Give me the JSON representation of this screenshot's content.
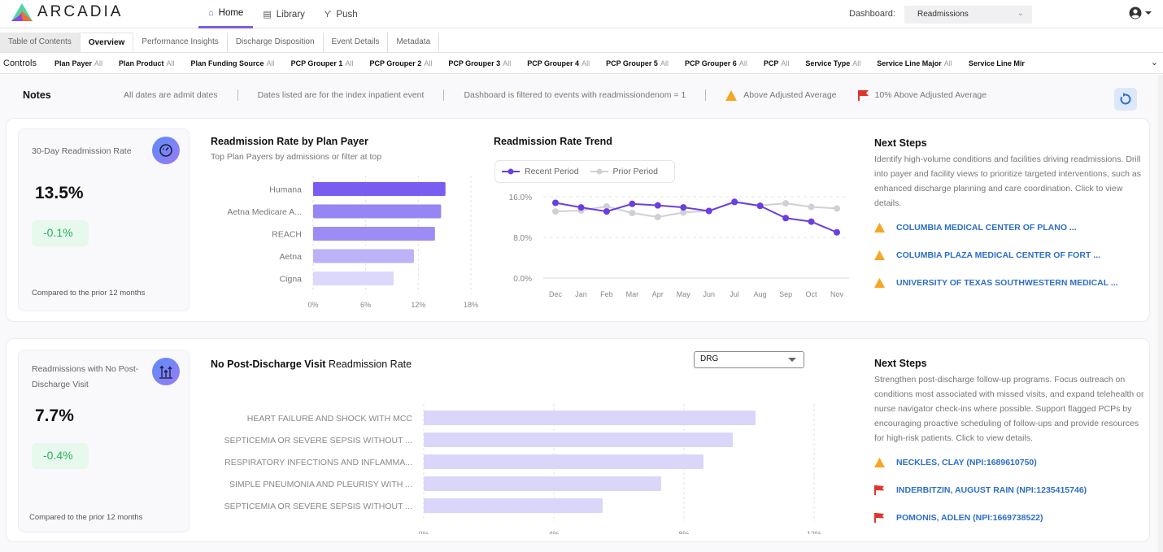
{
  "header": {
    "brand": "ARCADIA",
    "nav": [
      {
        "label": "Home",
        "icon": "home-icon",
        "active": true
      },
      {
        "label": "Library",
        "icon": "library-icon",
        "active": false
      },
      {
        "label": "Push",
        "icon": "push-icon",
        "active": false
      }
    ],
    "dashboard_label": "Dashboard:",
    "dashboard_value": "Readmissions"
  },
  "tabs": [
    {
      "label": "Table of Contents"
    },
    {
      "label": "Overview",
      "active": true
    },
    {
      "label": "Performance Insights"
    },
    {
      "label": "Discharge Disposition"
    },
    {
      "label": "Event Details"
    },
    {
      "label": "Metadata"
    }
  ],
  "controls": {
    "label": "Controls",
    "filters": [
      {
        "name": "Plan Payer",
        "value": "All"
      },
      {
        "name": "Plan Product",
        "value": "All"
      },
      {
        "name": "Plan Funding Source",
        "value": "All"
      },
      {
        "name": "PCP Grouper 1",
        "value": "All"
      },
      {
        "name": "PCP Grouper 2",
        "value": "All"
      },
      {
        "name": "PCP Grouper 3",
        "value": "All"
      },
      {
        "name": "PCP Grouper 4",
        "value": "All"
      },
      {
        "name": "PCP Grouper 5",
        "value": "All"
      },
      {
        "name": "PCP Grouper 6",
        "value": "All"
      },
      {
        "name": "PCP",
        "value": "All"
      },
      {
        "name": "Service Type",
        "value": "All"
      },
      {
        "name": "Service Line Major",
        "value": "All"
      },
      {
        "name": "Service Line Mir",
        "value": ""
      }
    ]
  },
  "notes": {
    "title": "Notes",
    "items": [
      "All dates are admit dates",
      "Dates listed are for the index inpatient event",
      "Dashboard is filtered to events with readmissiondenom = 1"
    ],
    "legend": [
      {
        "icon": "warning-triangle-icon",
        "label": "Above Adjusted Average",
        "color": "#f5a623"
      },
      {
        "icon": "red-flag-icon",
        "label": "10% Above Adjusted Average",
        "color": "#e0352b"
      }
    ]
  },
  "section1": {
    "kpi": {
      "title": "30-Day Readmission Rate",
      "value": "13.5%",
      "delta": "-0.1%",
      "footnote": "Compared to the prior 12 months"
    },
    "next_steps": {
      "title": "Next Steps",
      "description": "Identify high-volume conditions and facilities driving readmissions. Drill into payer and facility views to prioritize targeted interventions, such as enhanced discharge planning and care coordination. Click to view details.",
      "items": [
        {
          "label": "COLUMBIA MEDICAL CENTER OF PLANO ...",
          "flag": "triangle"
        },
        {
          "label": "COLUMBIA PLAZA MEDICAL CENTER OF FORT ...",
          "flag": "triangle"
        },
        {
          "label": "UNIVERSITY OF TEXAS SOUTHWESTERN MEDICAL ...",
          "flag": "triangle"
        }
      ]
    }
  },
  "section2": {
    "kpi": {
      "title": "Readmissions with No Post-Discharge Visit",
      "value": "7.7%",
      "delta": "-0.4%",
      "footnote": "Compared to the prior 12 months"
    },
    "chart_title_bold": "No Post-Discharge Visit",
    "chart_title_rest": " Readmission Rate",
    "dropdown": "DRG",
    "next_steps": {
      "title": "Next Steps",
      "description": "Strengthen post-discharge follow-up programs. Focus outreach on conditions most associated with missed visits, and expand telehealth or nurse navigator check-ins where possible. Support flagged PCPs by encouraging proactive scheduling of follow-ups and provide resources for high-risk patients. Click to view details.",
      "items": [
        {
          "label": "NECKLES, CLAY (NPI:1689610750)",
          "flag": "triangle"
        },
        {
          "label": "INDERBITZIN, AUGUST RAIN (NPI:1235415746)",
          "flag": "flag"
        },
        {
          "label": "POMONIS, ADLEN (NPI:1669738522)",
          "flag": "flag"
        }
      ]
    }
  },
  "colors": {
    "accent": "#7c5ce0",
    "link": "#2d6fc7",
    "warning": "#f5a623",
    "danger": "#e0352b",
    "positive": "#2bb15a"
  },
  "chart_data": [
    {
      "type": "bar",
      "orientation": "horizontal",
      "title": "Readmission Rate by Plan Payer",
      "subtitle": "Top Plan Payers by admissions or filter at top",
      "categories": [
        "Humana",
        "Aetna Medicare A...",
        "REACH",
        "Aetna",
        "Cigna"
      ],
      "values": [
        15.1,
        14.6,
        13.9,
        11.5,
        9.2
      ],
      "bar_colors": [
        "#7b5cf0",
        "#9585f5",
        "#9d8cf3",
        "#bbb2f7",
        "#dcd8fb"
      ],
      "xticks": [
        "0%",
        "6%",
        "12%",
        "18%"
      ],
      "xlim": [
        0,
        18
      ],
      "grid": true
    },
    {
      "type": "line",
      "title": "Readmission Rate Trend",
      "categories": [
        "Dec",
        "Jan",
        "Feb",
        "Mar",
        "Apr",
        "May",
        "Jun",
        "Jul",
        "Aug",
        "Sep",
        "Oct",
        "Nov"
      ],
      "series": [
        {
          "name": "Recent Period",
          "color": "#6a3fe0",
          "values": [
            14.8,
            13.9,
            13.1,
            14.6,
            14.3,
            13.9,
            13.2,
            15.0,
            14.2,
            11.8,
            11.1,
            9.0
          ]
        },
        {
          "name": "Prior Period",
          "color": "#cfd0d6",
          "values": [
            13.1,
            13.3,
            14.1,
            12.8,
            12.0,
            12.9,
            13.2,
            14.9,
            14.3,
            14.7,
            14.0,
            13.7
          ]
        }
      ],
      "yticks": [
        "0.0%",
        "8.0%",
        "16.0%"
      ],
      "ylim": [
        0,
        16
      ],
      "legend": "top-left",
      "grid": true
    },
    {
      "type": "bar",
      "orientation": "horizontal",
      "title": "No Post-Discharge Visit Readmission Rate",
      "categories": [
        "HEART FAILURE AND SHOCK WITH MCC",
        "SEPTICEMIA OR SEVERE SEPSIS WITHOUT ...",
        "RESPIRATORY INFECTIONS AND INFLAMMA...",
        "SIMPLE PNEUMONIA AND PLEURISY WITH ...",
        "SEPTICEMIA OR SEVERE SEPSIS WITHOUT ..."
      ],
      "values": [
        10.2,
        9.5,
        8.6,
        7.3,
        5.5
      ],
      "bar_color": "#d9d6fa",
      "xticks": [
        "0%",
        "4%",
        "8%",
        "12%"
      ],
      "xlim": [
        0,
        12
      ],
      "grid": true
    }
  ]
}
